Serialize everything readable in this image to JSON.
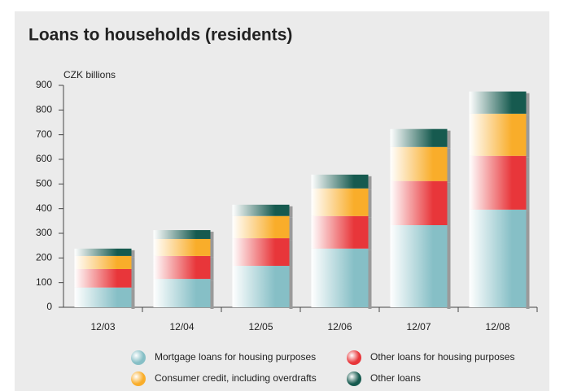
{
  "chart_data": {
    "type": "stacked_bar",
    "title": "Loans to households (residents)",
    "y_axis_label": "CZK billions",
    "categories": [
      "12/03",
      "12/04",
      "12/05",
      "12/06",
      "12/07",
      "12/08"
    ],
    "series": [
      {
        "name": "Mortgage loans for housing purposes",
        "color": "#86bfc6",
        "values": [
          80,
          115,
          168,
          238,
          333,
          396
        ]
      },
      {
        "name": "Other loans for housing purposes",
        "color": "#e8363a",
        "values": [
          75,
          93,
          112,
          132,
          179,
          218
        ]
      },
      {
        "name": "Consumer credit, including overdrafts",
        "color": "#f9ad2a",
        "values": [
          53,
          69,
          90,
          112,
          138,
          171
        ]
      },
      {
        "name": "Other loans",
        "color": "#165a4f",
        "values": [
          30,
          36,
          46,
          56,
          73,
          90
        ]
      }
    ],
    "ylim": [
      0,
      900
    ],
    "yticks": [
      0,
      100,
      200,
      300,
      400,
      500,
      600,
      700,
      800,
      900
    ]
  }
}
